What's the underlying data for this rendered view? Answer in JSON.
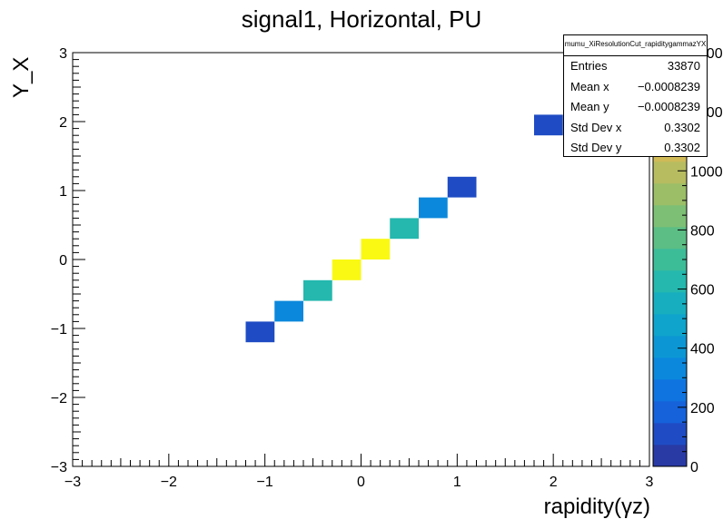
{
  "title": "signal1, Horizontal, PU",
  "stats": {
    "name": "mumu_XiResolutionCut_rapiditygammazYX",
    "rows": [
      {
        "label": "Entries",
        "value": "33870"
      },
      {
        "label": "Mean x",
        "value": "−0.0008239"
      },
      {
        "label": "Mean y",
        "value": "−0.0008239"
      },
      {
        "label": "Std Dev x",
        "value": "0.3302"
      },
      {
        "label": "Std Dev y",
        "value": "0.3302"
      }
    ]
  },
  "chart_data": {
    "type": "heatmap",
    "title": "signal1, Horizontal, PU",
    "xlabel": "rapidity(γz)",
    "ylabel": "Y_X",
    "xlim": [
      -3,
      3
    ],
    "ylim": [
      -3,
      3
    ],
    "x_ticks": [
      -3,
      -2,
      -1,
      0,
      1,
      2,
      3
    ],
    "x_tick_labels": [
      "−3",
      "−2",
      "−1",
      "0",
      "1",
      "2",
      "3"
    ],
    "y_ticks": [
      -3,
      -2,
      -1,
      0,
      1,
      2,
      3
    ],
    "y_tick_labels": [
      "−3",
      "−2",
      "−1",
      "0",
      "1",
      "2",
      "3"
    ],
    "zlim": [
      0,
      1400
    ],
    "z_ticks": [
      0,
      200,
      400,
      600,
      800,
      1000,
      1200,
      1400
    ],
    "z_tick_labels": [
      "0",
      "200",
      "400",
      "600",
      "800",
      "1000",
      "1200",
      "1400"
    ],
    "bin_width": 0.3,
    "bins": [
      {
        "x": -1.05,
        "y": -1.05,
        "z": 120
      },
      {
        "x": -0.75,
        "y": -0.75,
        "z": 350
      },
      {
        "x": -0.45,
        "y": -0.45,
        "z": 640
      },
      {
        "x": -0.15,
        "y": -0.15,
        "z": 1420
      },
      {
        "x": 0.15,
        "y": 0.15,
        "z": 1420
      },
      {
        "x": 0.45,
        "y": 0.45,
        "z": 640
      },
      {
        "x": 0.75,
        "y": 0.75,
        "z": 350
      },
      {
        "x": 1.05,
        "y": 1.05,
        "z": 120
      },
      {
        "x": 1.95,
        "y": 1.95,
        "z": 120
      }
    ],
    "palette": [
      "#2a3aa5",
      "#1f4cc4",
      "#1562db",
      "#0f74e0",
      "#0b88dc",
      "#0c97d4",
      "#0fa4cb",
      "#17afbf",
      "#24b8ae",
      "#3dbc98",
      "#5cbe85",
      "#7dbf74",
      "#9bbe67",
      "#b7bc60",
      "#cfba57",
      "#e5bd4c",
      "#f5c93a",
      "#f9dd24",
      "#fbf10f"
    ],
    "overflow_color": "#f9f914"
  }
}
